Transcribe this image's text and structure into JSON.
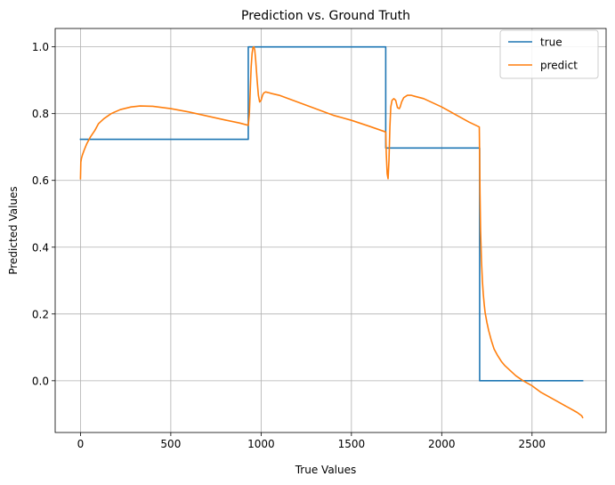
{
  "chart_data": {
    "type": "line",
    "title": "Prediction vs. Ground Truth",
    "xlabel": "True Values",
    "ylabel": "Predicted Values",
    "xlim": [
      -140,
      2910
    ],
    "ylim": [
      -0.155,
      1.055
    ],
    "xticks": [
      {
        "value": 0,
        "label": "0"
      },
      {
        "value": 500,
        "label": "500"
      },
      {
        "value": 1000,
        "label": "1000"
      },
      {
        "value": 1500,
        "label": "1500"
      },
      {
        "value": 2000,
        "label": "2000"
      },
      {
        "value": 2500,
        "label": "2500"
      }
    ],
    "yticks": [
      {
        "value": 0.0,
        "label": "0.0"
      },
      {
        "value": 0.2,
        "label": "0.2"
      },
      {
        "value": 0.4,
        "label": "0.4"
      },
      {
        "value": 0.6,
        "label": "0.6"
      },
      {
        "value": 0.8,
        "label": "0.8"
      },
      {
        "value": 1.0,
        "label": "1.0"
      }
    ],
    "grid": true,
    "legend_position": "top-right",
    "series": [
      {
        "name": "true",
        "color": "#1f77b4",
        "x": [
          0,
          929,
          929,
          1690,
          1690,
          2210,
          2210,
          2780
        ],
        "y": [
          0.723,
          0.723,
          1.0,
          1.0,
          0.697,
          0.697,
          0.0,
          0.0
        ]
      },
      {
        "name": "predict",
        "color": "#ff7f0e",
        "x": [
          0,
          2,
          5,
          10,
          20,
          35,
          55,
          80,
          100,
          130,
          170,
          220,
          280,
          330,
          400,
          500,
          600,
          700,
          800,
          880,
          929,
          935,
          940,
          945,
          950,
          955,
          960,
          965,
          970,
          978,
          985,
          992,
          1000,
          1008,
          1015,
          1025,
          1040,
          1060,
          1100,
          1200,
          1300,
          1400,
          1500,
          1600,
          1690,
          1693,
          1698,
          1703,
          1708,
          1713,
          1718,
          1725,
          1735,
          1745,
          1755,
          1765,
          1770,
          1778,
          1790,
          1810,
          1830,
          1850,
          1900,
          2000,
          2100,
          2150,
          2208,
          2212,
          2215,
          2220,
          2225,
          2230,
          2235,
          2240,
          2250,
          2260,
          2275,
          2290,
          2310,
          2330,
          2350,
          2380,
          2410,
          2450,
          2500,
          2550,
          2600,
          2650,
          2700,
          2750,
          2775,
          2780
        ],
        "y": [
          0.605,
          0.655,
          0.665,
          0.675,
          0.69,
          0.71,
          0.73,
          0.75,
          0.77,
          0.785,
          0.8,
          0.812,
          0.82,
          0.823,
          0.822,
          0.815,
          0.805,
          0.793,
          0.781,
          0.772,
          0.765,
          0.8,
          0.87,
          0.94,
          0.98,
          0.998,
          1.0,
          0.99,
          0.96,
          0.9,
          0.855,
          0.835,
          0.84,
          0.855,
          0.862,
          0.865,
          0.863,
          0.86,
          0.855,
          0.835,
          0.815,
          0.795,
          0.78,
          0.762,
          0.745,
          0.68,
          0.62,
          0.605,
          0.66,
          0.76,
          0.82,
          0.84,
          0.845,
          0.84,
          0.818,
          0.815,
          0.82,
          0.835,
          0.848,
          0.855,
          0.855,
          0.852,
          0.845,
          0.82,
          0.79,
          0.775,
          0.76,
          0.56,
          0.45,
          0.36,
          0.3,
          0.26,
          0.23,
          0.205,
          0.175,
          0.15,
          0.12,
          0.095,
          0.075,
          0.058,
          0.045,
          0.03,
          0.015,
          0.0,
          -0.015,
          -0.035,
          -0.05,
          -0.065,
          -0.08,
          -0.095,
          -0.105,
          -0.11
        ]
      }
    ]
  }
}
